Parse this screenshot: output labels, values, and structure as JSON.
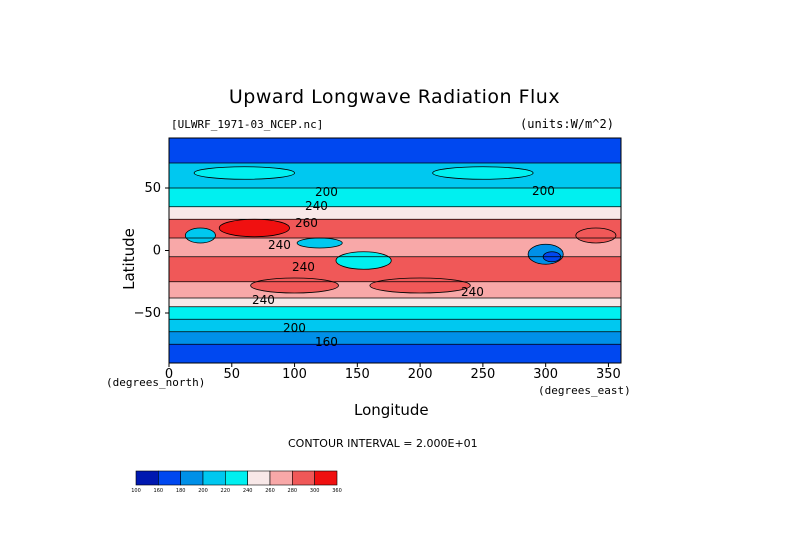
{
  "chart_data": {
    "type": "heatmap",
    "title": "Upward Longwave Radiation Flux",
    "subtitle_left": "[ULWRF_1971-03_NCEP.nc]",
    "subtitle_right": "(units:W/m^2)",
    "xlabel": "Longitude",
    "ylabel": "Latitude",
    "x_unit_label": "(degrees_east)",
    "y_unit_label": "(degrees_north)",
    "xlim": [
      0,
      360
    ],
    "ylim": [
      -90,
      90
    ],
    "x_ticks": [
      0,
      50,
      100,
      150,
      200,
      250,
      300,
      350
    ],
    "y_ticks": [
      50,
      0,
      -50
    ],
    "contour_interval_text": "CONTOUR INTERVAL = 2.000E+01",
    "contour_labels": [
      "200",
      "240",
      "260",
      "240",
      "240",
      "240",
      "240",
      "200",
      "160",
      "200"
    ],
    "colorbar": {
      "levels": [
        100,
        160,
        180,
        200,
        220,
        240,
        260,
        280,
        300,
        360
      ],
      "level_labels": [
        "100",
        "160",
        "180",
        "200",
        "220",
        "240",
        "260",
        "280",
        "300",
        "360"
      ],
      "colors": [
        "#0018b0",
        "#0048f0",
        "#0090e8",
        "#00c8f0",
        "#00f0f0",
        "#f8e8e8",
        "#f8a8a8",
        "#f05858",
        "#f01010"
      ]
    },
    "latitude_bands": [
      {
        "lat": [
          70,
          90
        ],
        "flux_level": 1
      },
      {
        "lat": [
          50,
          70
        ],
        "flux_level": 3
      },
      {
        "lat": [
          35,
          50
        ],
        "flux_level": 4
      },
      {
        "lat": [
          25,
          35
        ],
        "flux_level": 5
      },
      {
        "lat": [
          10,
          25
        ],
        "flux_level": 7
      },
      {
        "lat": [
          -5,
          10
        ],
        "flux_level": 6
      },
      {
        "lat": [
          -25,
          -5
        ],
        "flux_level": 7
      },
      {
        "lat": [
          -38,
          -25
        ],
        "flux_level": 6
      },
      {
        "lat": [
          -45,
          -38
        ],
        "flux_level": 5
      },
      {
        "lat": [
          -55,
          -45
        ],
        "flux_level": 4
      },
      {
        "lat": [
          -65,
          -55
        ],
        "flux_level": 3
      },
      {
        "lat": [
          -75,
          -65
        ],
        "flux_level": 2
      },
      {
        "lat": [
          -90,
          -75
        ],
        "flux_level": 1
      }
    ]
  }
}
